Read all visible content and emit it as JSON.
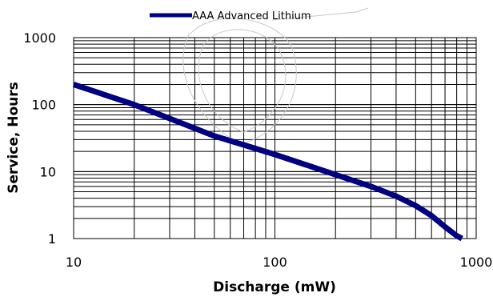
{
  "chart_data": {
    "type": "line",
    "title": "",
    "xlabel": "Discharge (mW)",
    "ylabel": "Service, Hours",
    "xscale": "log",
    "yscale": "log",
    "xlim": [
      10,
      1000
    ],
    "ylim": [
      1,
      1000
    ],
    "x_ticks": [
      "10",
      "100",
      "1000"
    ],
    "y_ticks": [
      "1",
      "10",
      "100",
      "1000"
    ],
    "grid": true,
    "legend_position": "top-center",
    "series": [
      {
        "name": "AAA Advanced Lithium",
        "color": "#000080",
        "x": [
          10,
          20,
          30,
          50,
          70,
          100,
          150,
          200,
          300,
          400,
          500,
          600,
          700,
          800,
          850
        ],
        "y": [
          200,
          100,
          62,
          34,
          25,
          18,
          12,
          9,
          6,
          4.3,
          3.1,
          2.2,
          1.5,
          1.1,
          1
        ]
      }
    ]
  }
}
